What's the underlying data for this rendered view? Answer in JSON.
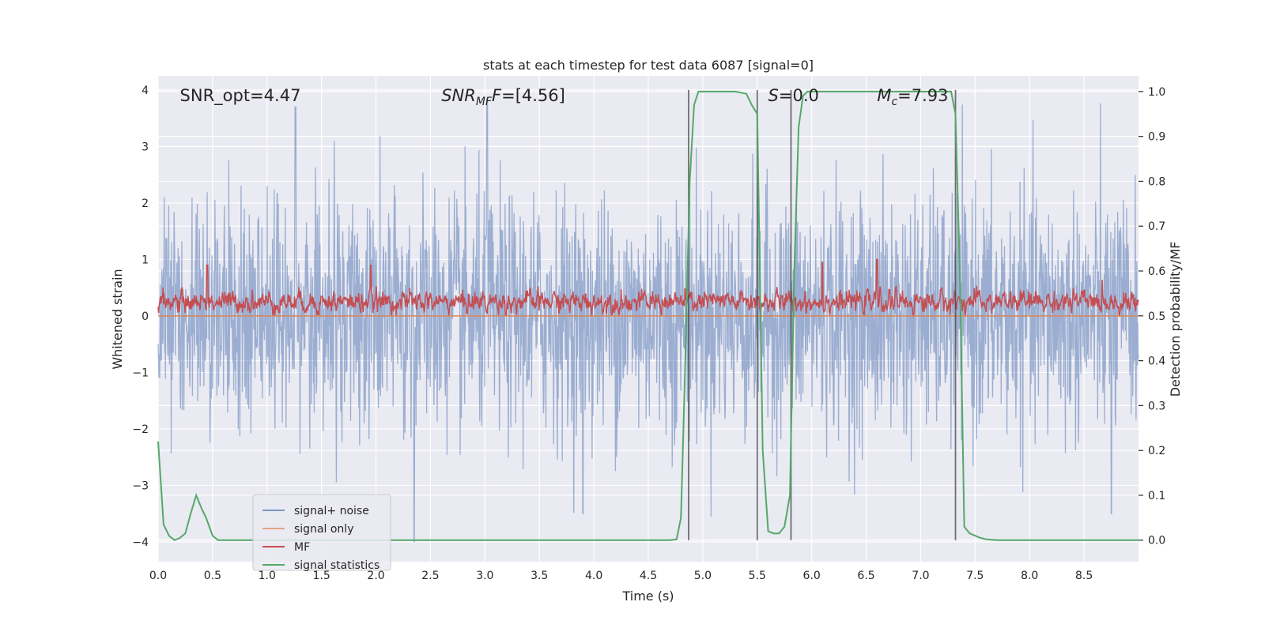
{
  "chart_data": {
    "type": "line",
    "title": "stats at each timestep for test data 6087 [signal=0]",
    "xlabel": "Time (s)",
    "ylabel": "Whitened strain",
    "y2label": "Detection probability/MF",
    "xlim": [
      0.0,
      9.0
    ],
    "ylim": [
      -4.35,
      4.25
    ],
    "y2lim": [
      -0.048,
      1.035
    ],
    "xticks": [
      0.0,
      0.5,
      1.0,
      1.5,
      2.0,
      2.5,
      3.0,
      3.5,
      4.0,
      4.5,
      5.0,
      5.5,
      6.0,
      6.5,
      7.0,
      7.5,
      8.0,
      8.5
    ],
    "yticks": [
      -4,
      -3,
      -2,
      -1,
      0,
      1,
      2,
      3,
      4
    ],
    "y2ticks": [
      0.0,
      0.1,
      0.2,
      0.3,
      0.4,
      0.5,
      0.6,
      0.7,
      0.8,
      0.9,
      1.0
    ],
    "grid": true,
    "legend_position": "lower-left",
    "annotations": [
      {
        "text": "SNR_opt=4.47",
        "x": 0.2,
        "y": 3.9
      },
      {
        "text": "SNR_MF=[4.56]",
        "x": 2.6,
        "y": 3.9
      },
      {
        "text": "S=0.0",
        "x": 5.6,
        "y": 3.9
      },
      {
        "text": "M_c=7.93",
        "x": 6.6,
        "y": 3.9
      }
    ],
    "vertical_lines": [
      4.87,
      5.5,
      5.81,
      7.32
    ],
    "vertical_lines_range": [
      0.0,
      1.0
    ],
    "series": [
      {
        "name": "signal+ noise",
        "color": "#4c72b0",
        "opacity": 0.5,
        "axis": "left",
        "description_values": {
          "mean": 0.0,
          "typical_range": [
            -2.6,
            2.8
          ],
          "peaks": [
            [
              1.26,
              3.7
            ],
            [
              3.02,
              3.85
            ],
            [
              2.35,
              -4.0
            ],
            [
              3.9,
              -3.5
            ],
            [
              8.75,
              -3.5
            ]
          ]
        }
      },
      {
        "name": "signal only",
        "color": "#dd8452",
        "axis": "left",
        "x": [
          0.0,
          9.0
        ],
        "y": [
          0.0,
          0.0
        ]
      },
      {
        "name": "MF",
        "color": "#c44e52",
        "axis": "left",
        "description_values": {
          "mean": 0.25,
          "typical_range": [
            0.0,
            0.6
          ],
          "peaks": [
            [
              0.45,
              0.9
            ],
            [
              1.95,
              0.9
            ],
            [
              6.1,
              0.95
            ],
            [
              6.6,
              1.0
            ]
          ]
        }
      },
      {
        "name": "signal statistics",
        "color": "#55a868",
        "axis": "right",
        "x": [
          0.0,
          0.05,
          0.1,
          0.15,
          0.2,
          0.25,
          0.3,
          0.35,
          0.4,
          0.44,
          0.5,
          0.55,
          0.6,
          1.0,
          2.0,
          3.0,
          4.0,
          4.5,
          4.7,
          4.76,
          4.8,
          4.84,
          4.88,
          4.92,
          4.96,
          5.0,
          5.1,
          5.2,
          5.3,
          5.4,
          5.45,
          5.5,
          5.55,
          5.6,
          5.65,
          5.7,
          5.75,
          5.8,
          5.84,
          5.88,
          5.92,
          5.96,
          6.0,
          6.5,
          7.0,
          7.2,
          7.28,
          7.32,
          7.36,
          7.4,
          7.45,
          7.5,
          7.55,
          7.6,
          7.7,
          8.0,
          8.5,
          9.0
        ],
        "y": [
          0.22,
          0.035,
          0.01,
          0.0,
          0.005,
          0.015,
          0.06,
          0.1,
          0.07,
          0.05,
          0.01,
          0.0,
          0.0,
          0.0,
          0.0,
          0.0,
          0.0,
          0.0,
          0.0,
          0.002,
          0.05,
          0.4,
          0.8,
          0.97,
          1.0,
          1.0,
          1.0,
          1.0,
          1.0,
          0.995,
          0.97,
          0.95,
          0.2,
          0.02,
          0.015,
          0.015,
          0.03,
          0.1,
          0.6,
          0.92,
          0.99,
          1.0,
          1.0,
          1.0,
          1.0,
          1.0,
          1.0,
          0.95,
          0.6,
          0.03,
          0.015,
          0.01,
          0.005,
          0.002,
          0.0,
          0.0,
          0.0,
          0.0
        ]
      }
    ]
  }
}
